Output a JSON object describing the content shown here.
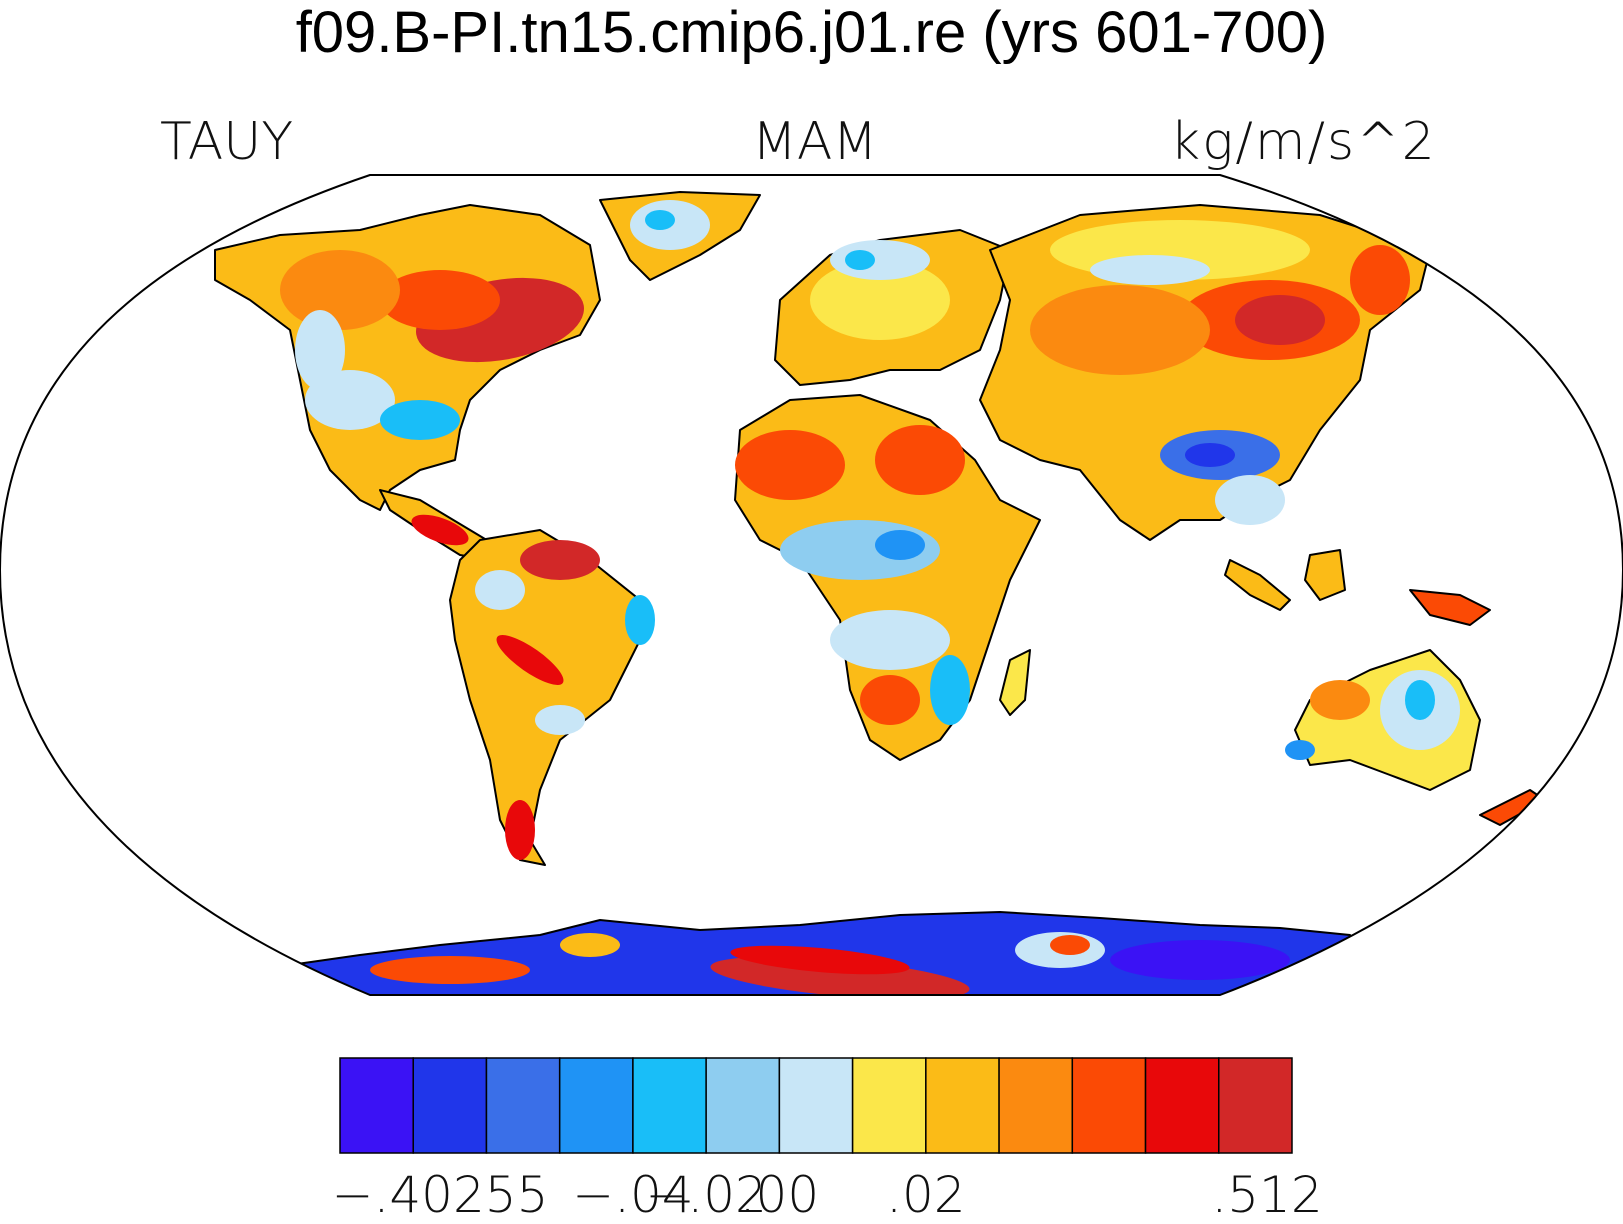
{
  "title": "f09.B-PI.tn15.cmip6.j01.re (yrs 601-700)",
  "variable": "TAUY",
  "season": "MAM",
  "units": "kg/m/s^2",
  "colorbar": {
    "colors": [
      "#3b12f5",
      "#2036ea",
      "#3a6fe8",
      "#1f93f5",
      "#19bef8",
      "#8ecdf0",
      "#c8e6f7",
      "#fbe74a",
      "#fbbb17",
      "#fb8a10",
      "#fb4a05",
      "#e8080a",
      "#d22828"
    ],
    "labels": [
      "−.40255",
      "−.04",
      "−.02",
      ".00",
      ".02",
      ".512"
    ]
  },
  "map": {
    "projection": "robinson",
    "legend_placement": "bottom"
  }
}
